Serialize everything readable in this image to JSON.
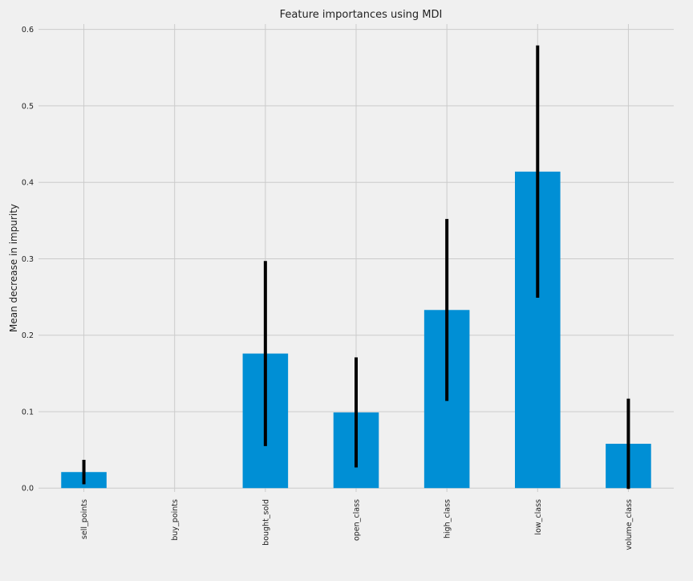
{
  "chart_data": {
    "type": "bar",
    "title": "Feature importances using MDI",
    "xlabel": "",
    "ylabel": "Mean decrease in impurity",
    "categories": [
      "sell_points",
      "buy_points",
      "bought_sold",
      "open_class",
      "high_class",
      "low_class",
      "volume_class"
    ],
    "values": [
      0.021,
      0.0,
      0.176,
      0.099,
      0.233,
      0.414,
      0.058
    ],
    "error": [
      0.016,
      0.0,
      0.121,
      0.072,
      0.119,
      0.165,
      0.059
    ],
    "ylim": [
      -0.005,
      0.607
    ],
    "yticks": [
      0.0,
      0.1,
      0.2,
      0.3,
      0.4,
      0.5,
      0.6
    ],
    "ytick_labels": [
      "0.0",
      "0.1",
      "0.2",
      "0.3",
      "0.4",
      "0.5",
      "0.6"
    ],
    "grid": true,
    "legend": "none",
    "colors": {
      "bar": "#008fd5",
      "error_bar": "#000000",
      "grid": "#cbcbcb",
      "background": "#f0f0f0"
    }
  }
}
